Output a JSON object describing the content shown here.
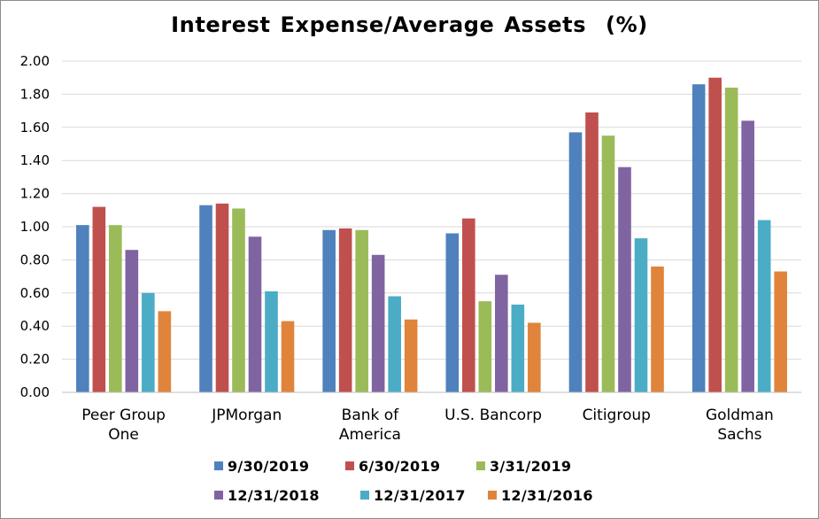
{
  "chart_data": {
    "type": "bar",
    "title": "Interest Expense/Average Assets  (%)",
    "xlabel": "",
    "ylabel": "",
    "ylim": [
      0,
      2
    ],
    "yticks": [
      "0.00",
      "0.20",
      "0.40",
      "0.60",
      "0.80",
      "1.00",
      "1.20",
      "1.40",
      "1.60",
      "1.80",
      "2.00"
    ],
    "grid": true,
    "legend_position": "bottom",
    "categories": [
      [
        "Peer Group",
        "One"
      ],
      [
        "JPMorgan"
      ],
      [
        "Bank of",
        "America"
      ],
      [
        "U.S. Bancorp"
      ],
      [
        "Citigroup"
      ],
      [
        "Goldman",
        "Sachs"
      ]
    ],
    "series": [
      {
        "name": "9/30/2019",
        "color": "#4f81bd",
        "values": [
          1.01,
          1.13,
          0.98,
          0.96,
          1.57,
          1.86
        ]
      },
      {
        "name": "6/30/2019",
        "color": "#c0504d",
        "values": [
          1.12,
          1.14,
          0.99,
          1.05,
          1.69,
          1.9
        ]
      },
      {
        "name": "3/31/2019",
        "color": "#9bbb59",
        "values": [
          1.01,
          1.11,
          0.98,
          0.55,
          1.55,
          1.84
        ]
      },
      {
        "name": "12/31/2018",
        "color": "#8064a2",
        "values": [
          0.86,
          0.94,
          0.83,
          0.71,
          1.36,
          1.64
        ]
      },
      {
        "name": "12/31/2017",
        "color": "#4bacc6",
        "values": [
          0.6,
          0.61,
          0.58,
          0.53,
          0.93,
          1.04
        ]
      },
      {
        "name": "12/31/2016",
        "color": "#e0843b",
        "values": [
          0.49,
          0.43,
          0.44,
          0.42,
          0.76,
          0.73
        ]
      }
    ]
  }
}
